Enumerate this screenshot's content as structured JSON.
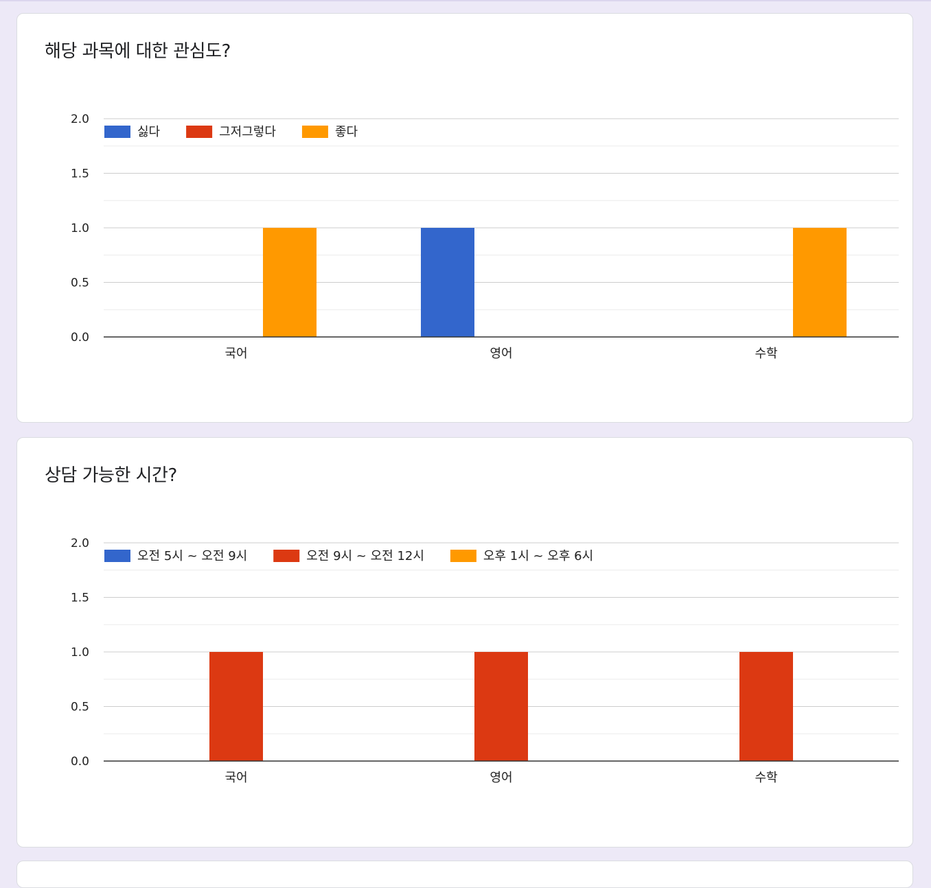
{
  "colors": {
    "series_1": "#3366cc",
    "series_2": "#dc3912",
    "series_3": "#ff9900",
    "gridline": "#cccccc",
    "minor_gridline": "#ebebeb",
    "baseline": "#333333",
    "text": "#222222"
  },
  "cards": [
    {
      "title": "해당 과목에 대한 관심도?",
      "chart_data": {
        "type": "bar",
        "categories": [
          "국어",
          "영어",
          "수학"
        ],
        "series": [
          {
            "name": "싫다",
            "values": [
              0,
              1,
              0
            ]
          },
          {
            "name": "그저그렇다",
            "values": [
              0,
              0,
              0
            ]
          },
          {
            "name": "좋다",
            "values": [
              1,
              0,
              1
            ]
          }
        ],
        "ylim": [
          0,
          2
        ],
        "yticks": [
          "0.0",
          "0.5",
          "1.0",
          "1.5",
          "2.0"
        ],
        "grid": true,
        "legend": "top-left"
      }
    },
    {
      "title": "상담 가능한 시간?",
      "chart_data": {
        "type": "bar",
        "categories": [
          "국어",
          "영어",
          "수학"
        ],
        "series": [
          {
            "name": "오전 5시 ~ 오전 9시",
            "values": [
              0,
              0,
              0
            ]
          },
          {
            "name": "오전 9시 ~ 오전 12시",
            "values": [
              1,
              1,
              1
            ]
          },
          {
            "name": "오후 1시 ~ 오후 6시",
            "values": [
              0,
              0,
              0
            ]
          }
        ],
        "ylim": [
          0,
          2
        ],
        "yticks": [
          "0.0",
          "0.5",
          "1.0",
          "1.5",
          "2.0"
        ],
        "grid": true,
        "legend": "top-left"
      }
    }
  ]
}
